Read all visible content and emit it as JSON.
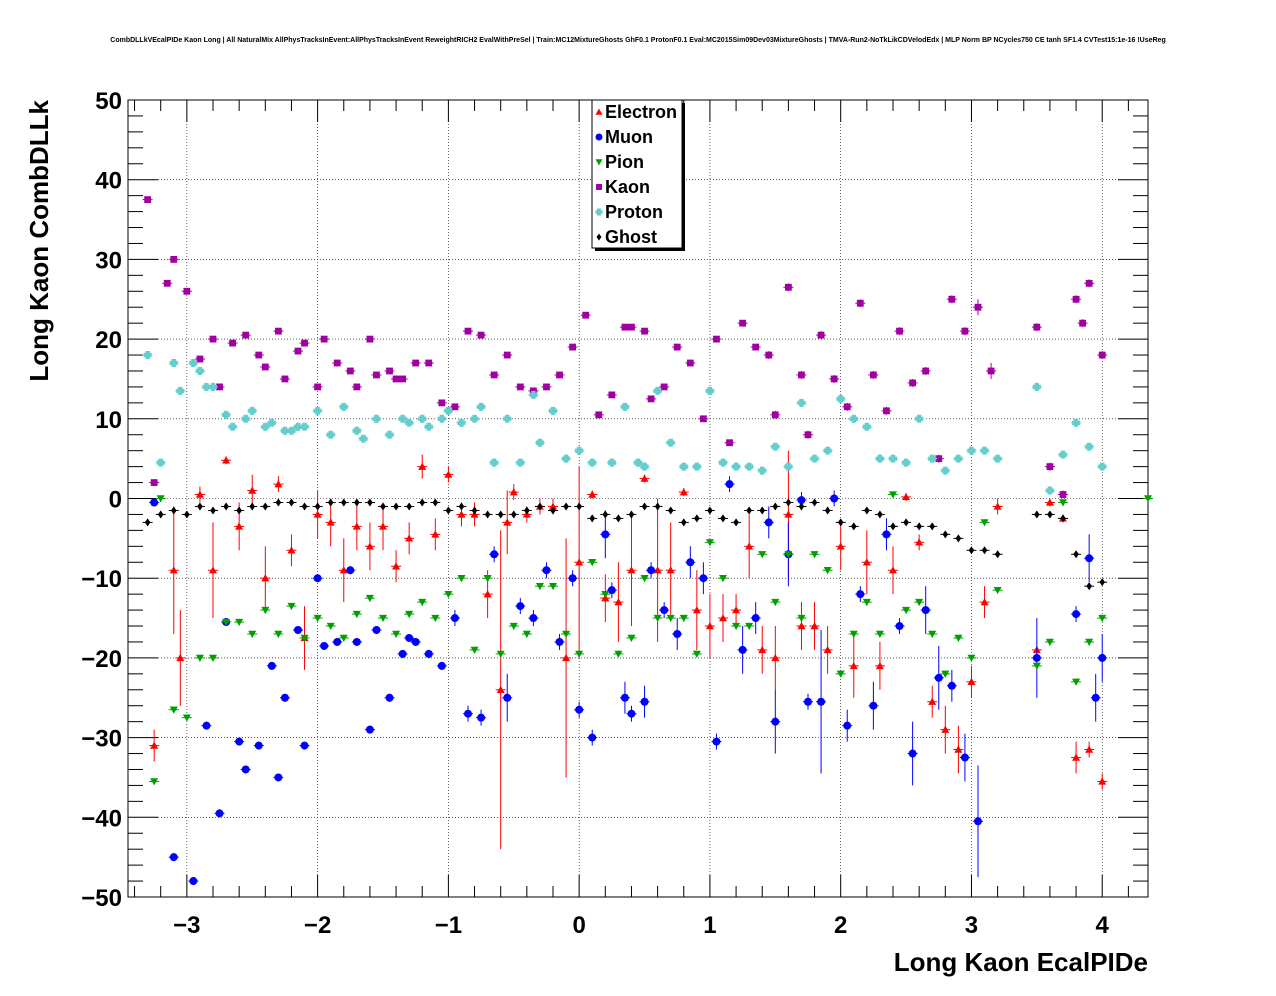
{
  "chart_data": {
    "type": "scatter",
    "title": "CombDLLkVEcalPIDe Kaon Long | All NaturalMix AllPhysTracksInEvent:AllPhysTracksInEvent ReweightRICH2 EvalWithPreSel | Train:MC12MixtureGhosts GhF0.1 ProtonF0.1 Eval:MC2015Sim09Dev03MixtureGhosts | TMVA-Run2-NoTkLikCDVelodEdx | MLP Norm BP NCycles750 CE tanh SF1.4 CVTest15:1e-16 !UseReg",
    "xlabel": "Long Kaon EcalPIDe",
    "ylabel": "Long Kaon CombDLLk",
    "xlim": [
      -3.45,
      4.35
    ],
    "ylim": [
      -50,
      50
    ],
    "xticks": [
      -3,
      -2,
      -1,
      0,
      1,
      2,
      3,
      4
    ],
    "xtick_labels": [
      "−3",
      "−2",
      "−1",
      "0",
      "1",
      "2",
      "3",
      "4"
    ],
    "yticks": [
      -50,
      -40,
      -30,
      -20,
      -10,
      0,
      10,
      20,
      30,
      40,
      50
    ],
    "ytick_labels": [
      "−50",
      "−40",
      "−30",
      "−20",
      "−10",
      "0",
      "10",
      "20",
      "30",
      "40",
      "50"
    ],
    "grid": true,
    "legend_position": "top-center",
    "series": [
      {
        "name": "Electron",
        "color": "#ff0000",
        "marker": "triangle-up",
        "x": [
          -3.25,
          -3.1,
          -3.05,
          -2.9,
          -2.8,
          -2.7,
          -2.6,
          -2.5,
          -2.4,
          -2.3,
          -2.2,
          -2.1,
          -2.0,
          -1.9,
          -1.8,
          -1.7,
          -1.6,
          -1.5,
          -1.4,
          -1.3,
          -1.2,
          -1.1,
          -1.0,
          -0.9,
          -0.8,
          -0.7,
          -0.6,
          -0.55,
          -0.5,
          -0.4,
          -0.3,
          -0.2,
          -0.1,
          0.0,
          0.1,
          0.2,
          0.3,
          0.4,
          0.5,
          0.6,
          0.7,
          0.8,
          0.9,
          1.0,
          1.1,
          1.2,
          1.3,
          1.4,
          1.5,
          1.6,
          1.7,
          1.8,
          1.9,
          2.0,
          2.1,
          2.2,
          2.3,
          2.4,
          2.5,
          2.6,
          2.7,
          2.8,
          2.9,
          3.0,
          3.1,
          3.2,
          3.5,
          3.6,
          3.7,
          3.8,
          3.9,
          4.0
        ],
        "y": [
          -31,
          -9,
          -20,
          0.5,
          -9,
          4.8,
          -3.5,
          1,
          -10,
          1.8,
          -6.5,
          -17.5,
          -2,
          -3,
          -9,
          -3.5,
          -6,
          -3.5,
          -8.5,
          -5,
          4,
          -4.5,
          3,
          -2,
          -2,
          -12,
          -24,
          -3,
          0.8,
          -2,
          -1,
          -1,
          -20,
          -8,
          0.5,
          -12.5,
          -13,
          -9,
          2.5,
          -9,
          -9,
          0.8,
          -14,
          -16,
          -15,
          -14,
          -6,
          -19,
          -20,
          -2,
          -16,
          -16,
          -19,
          -6,
          -21,
          -8,
          -21,
          -9,
          0.2,
          -5.5,
          -25.5,
          -29,
          -31.5,
          -23,
          -13,
          -1,
          -19,
          -0.5,
          -2.5,
          -32.5,
          -31.5,
          -35.5
        ],
        "err": [
          2,
          8,
          6,
          1,
          6,
          0.5,
          3,
          2,
          4,
          1,
          2,
          4,
          3,
          3,
          4,
          3,
          3,
          3,
          2,
          2,
          1.5,
          2,
          1,
          1.5,
          1.5,
          3,
          20,
          4,
          1,
          1,
          1,
          1,
          15,
          12,
          0.5,
          3,
          5,
          7,
          0.5,
          9,
          6,
          0.5,
          5,
          4,
          3,
          2,
          4,
          3,
          4,
          8,
          3,
          3,
          3,
          3,
          4,
          4,
          3,
          3,
          0.5,
          1,
          2,
          3,
          3,
          2,
          2,
          1,
          0.5,
          0.5,
          0.5,
          2,
          1,
          1
        ]
      },
      {
        "name": "Muon",
        "color": "#0000ff",
        "marker": "circle",
        "x": [
          -3.25,
          -3.1,
          -2.95,
          -2.85,
          -2.75,
          -2.7,
          -2.6,
          -2.55,
          -2.45,
          -2.35,
          -2.3,
          -2.25,
          -2.15,
          -2.1,
          -2.0,
          -1.95,
          -1.85,
          -1.75,
          -1.7,
          -1.6,
          -1.55,
          -1.45,
          -1.35,
          -1.3,
          -1.25,
          -1.15,
          -1.05,
          -0.95,
          -0.85,
          -0.75,
          -0.65,
          -0.55,
          -0.45,
          -0.35,
          -0.25,
          -0.15,
          -0.05,
          0.0,
          0.1,
          0.2,
          0.25,
          0.35,
          0.4,
          0.5,
          0.55,
          0.65,
          0.75,
          0.85,
          0.95,
          1.05,
          1.15,
          1.25,
          1.35,
          1.45,
          1.5,
          1.6,
          1.7,
          1.75,
          1.85,
          1.95,
          2.05,
          2.15,
          2.25,
          2.35,
          2.45,
          2.55,
          2.65,
          2.75,
          2.85,
          2.95,
          3.05,
          3.5,
          3.8,
          3.9,
          3.95,
          4.0
        ],
        "y": [
          -0.5,
          -45,
          -48,
          -28.5,
          -39.5,
          -15.5,
          -30.5,
          -34,
          -31,
          -21,
          -35,
          -25,
          -16.5,
          -31,
          -10,
          -18.5,
          -18,
          -9,
          -18,
          -29,
          -16.5,
          -25,
          -19.5,
          -17.5,
          -18,
          -19.5,
          -21,
          -15,
          -27,
          -27.5,
          -7,
          -25,
          -13.5,
          -15,
          -9,
          -18,
          -10,
          -26.5,
          -30,
          -4.5,
          -11.5,
          -25,
          -27,
          -25.5,
          -9,
          -14,
          -17,
          -8,
          -10,
          -30.5,
          1.8,
          -19,
          -15,
          -3,
          -28,
          -7,
          -0.2,
          -25.5,
          -25.5,
          0,
          -28.5,
          -12,
          -26,
          -4.5,
          -16,
          -32,
          -14,
          -22.5,
          -23.5,
          -32.5,
          -40.5,
          -20,
          -14.5,
          -7.5,
          -25,
          -20
        ],
        "err": [
          0.5,
          0.5,
          0.5,
          0.5,
          0.5,
          0.5,
          0.5,
          0.5,
          0.5,
          0.5,
          0.5,
          0.5,
          0.5,
          0.5,
          0.5,
          0.5,
          0.5,
          0.5,
          0.5,
          0.5,
          0.5,
          0.5,
          0.5,
          0.5,
          0.5,
          0.5,
          0.5,
          1,
          1,
          1,
          1,
          3,
          1,
          1,
          1,
          1,
          1,
          1,
          1,
          3,
          1,
          2,
          1,
          2,
          1,
          1,
          2,
          2,
          2,
          1,
          1,
          3,
          2,
          2,
          4,
          4,
          1,
          1,
          9,
          1,
          2,
          1,
          3,
          2,
          1,
          4,
          3,
          4,
          2,
          3,
          7,
          5,
          1,
          3,
          3,
          3
        ]
      },
      {
        "name": "Pion",
        "color": "#00a000",
        "marker": "triangle-down",
        "x": [
          -3.25,
          -3.2,
          -3.1,
          -3.0,
          -2.9,
          -2.8,
          -2.7,
          -2.6,
          -2.5,
          -2.4,
          -2.3,
          -2.2,
          -2.1,
          -2.0,
          -1.9,
          -1.8,
          -1.7,
          -1.6,
          -1.5,
          -1.4,
          -1.3,
          -1.2,
          -1.1,
          -1.0,
          -0.9,
          -0.8,
          -0.7,
          -0.6,
          -0.5,
          -0.4,
          -0.3,
          -0.2,
          -0.1,
          0.0,
          0.1,
          0.2,
          0.3,
          0.4,
          0.5,
          0.6,
          0.7,
          0.8,
          0.9,
          1.0,
          1.1,
          1.2,
          1.3,
          1.4,
          1.5,
          1.6,
          1.7,
          1.8,
          1.9,
          2.0,
          2.1,
          2.2,
          2.3,
          2.4,
          2.5,
          2.6,
          2.7,
          2.8,
          2.9,
          3.0,
          3.1,
          3.2,
          3.5,
          3.6,
          3.7,
          3.8,
          3.9,
          4.0,
          4.35
        ],
        "y": [
          -35.5,
          0,
          -26.5,
          -27.5,
          -20,
          -20,
          -15.5,
          -15.5,
          -17,
          -14,
          -17,
          -13.5,
          -17.5,
          -15,
          -16,
          -17.5,
          -14.5,
          -12.5,
          -15,
          -17,
          -14.5,
          -13,
          -15,
          -12,
          -10,
          -19,
          -10,
          -19.5,
          -16,
          -17,
          -11,
          -11,
          -17,
          -19.5,
          -8,
          -12,
          -19.5,
          -17.5,
          -10,
          -15,
          -15,
          -15,
          -19.5,
          -5.5,
          -10,
          -16,
          -16,
          -7,
          -13,
          -7,
          -15,
          -7,
          -9,
          -22,
          -17,
          -13,
          -17,
          0.5,
          -14,
          -13,
          -17,
          -22,
          -17.5,
          -20,
          -3,
          -11.5,
          -21,
          -18,
          -0.5,
          -23,
          -18,
          -15,
          0
        ]
      },
      {
        "name": "Kaon",
        "color": "#a000a0",
        "marker": "square",
        "x": [
          -3.3,
          -3.25,
          -3.15,
          -3.1,
          -3.0,
          -2.9,
          -2.8,
          -2.75,
          -2.65,
          -2.55,
          -2.45,
          -2.4,
          -2.3,
          -2.25,
          -2.15,
          -2.1,
          -2.0,
          -1.95,
          -1.85,
          -1.75,
          -1.7,
          -1.6,
          -1.55,
          -1.45,
          -1.4,
          -1.35,
          -1.25,
          -1.15,
          -1.05,
          -0.95,
          -0.85,
          -0.75,
          -0.65,
          -0.55,
          -0.45,
          -0.35,
          -0.25,
          -0.15,
          -0.05,
          0.05,
          0.15,
          0.25,
          0.35,
          0.4,
          0.5,
          0.55,
          0.65,
          0.75,
          0.85,
          0.95,
          1.05,
          1.15,
          1.25,
          1.35,
          1.45,
          1.5,
          1.6,
          1.7,
          1.75,
          1.85,
          1.95,
          2.05,
          2.15,
          2.25,
          2.35,
          2.45,
          2.55,
          2.65,
          2.75,
          2.85,
          2.95,
          3.05,
          3.15,
          3.5,
          3.6,
          3.7,
          3.8,
          3.85,
          3.9,
          4.0
        ],
        "y": [
          37.5,
          2,
          27,
          30,
          26,
          17.5,
          20,
          14,
          19.5,
          20.5,
          18,
          16.5,
          21,
          15,
          18.5,
          19.5,
          14,
          20,
          17,
          16,
          14,
          20,
          15.5,
          16,
          15,
          15,
          17,
          17,
          12,
          11.5,
          21,
          20.5,
          15.5,
          18,
          14,
          13.5,
          14,
          15.5,
          19,
          23,
          10.5,
          13,
          21.5,
          21.5,
          21,
          12.5,
          14,
          19,
          17,
          10,
          20,
          7,
          22,
          19,
          18,
          10.5,
          26.5,
          15.5,
          8,
          20.5,
          15,
          11.5,
          24.5,
          15.5,
          11,
          21,
          14.5,
          16,
          5,
          25,
          21,
          24,
          16,
          21.5,
          4,
          0.5,
          25,
          22,
          27,
          18
        ],
        "err": [
          0.3,
          0.3,
          0.3,
          0.3,
          0.3,
          0.3,
          0.3,
          0.3,
          0.3,
          0.3,
          0.3,
          0.3,
          0.3,
          0.3,
          0.3,
          0.3,
          0.3,
          0.3,
          0.3,
          0.3,
          0.3,
          0.3,
          0.3,
          0.3,
          0.3,
          0.3,
          0.3,
          0.3,
          0.3,
          0.3,
          0.3,
          0.3,
          0.3,
          0.3,
          0.3,
          0.3,
          0.3,
          0.3,
          0.3,
          0.3,
          0.3,
          0.3,
          0.3,
          0.3,
          0.3,
          0.3,
          0.3,
          0.3,
          0.3,
          0.3,
          0.3,
          0.3,
          0.3,
          0.3,
          0.5,
          0.5,
          0.5,
          0.5,
          0.5,
          0.5,
          0.5,
          0.5,
          0.5,
          0.5,
          0.5,
          0.5,
          0.5,
          0.5,
          0.5,
          0.5,
          0.5,
          1,
          1,
          0.5,
          0.5,
          0.5,
          0.5,
          0.5,
          0.5,
          0.5
        ]
      },
      {
        "name": "Proton",
        "color": "#66cccc",
        "marker": "cross",
        "x": [
          -3.3,
          -3.2,
          -3.1,
          -3.05,
          -2.95,
          -2.9,
          -2.85,
          -2.8,
          -2.7,
          -2.65,
          -2.55,
          -2.5,
          -2.4,
          -2.35,
          -2.25,
          -2.2,
          -2.15,
          -2.1,
          -2.0,
          -1.9,
          -1.8,
          -1.7,
          -1.65,
          -1.55,
          -1.45,
          -1.35,
          -1.3,
          -1.2,
          -1.15,
          -1.05,
          -1.0,
          -0.9,
          -0.8,
          -0.75,
          -0.65,
          -0.55,
          -0.45,
          -0.35,
          -0.3,
          -0.2,
          -0.1,
          0.0,
          0.1,
          0.25,
          0.35,
          0.45,
          0.5,
          0.6,
          0.7,
          0.8,
          0.9,
          1.0,
          1.1,
          1.2,
          1.3,
          1.4,
          1.5,
          1.6,
          1.7,
          1.8,
          1.9,
          2.0,
          2.1,
          2.2,
          2.3,
          2.4,
          2.5,
          2.6,
          2.7,
          2.8,
          2.9,
          3.0,
          3.1,
          3.2,
          3.5,
          3.6,
          3.7,
          3.8,
          3.9,
          4.0
        ],
        "y": [
          18,
          4.5,
          17,
          13.5,
          17,
          16,
          14,
          14,
          10.5,
          9,
          10,
          11,
          9,
          9.5,
          8.5,
          8.5,
          9,
          9,
          11,
          8,
          11.5,
          8.5,
          7.5,
          10,
          8,
          10,
          9.5,
          10,
          9,
          10,
          11,
          9.5,
          10,
          11.5,
          4.5,
          10,
          4.5,
          13,
          7,
          11,
          5,
          6,
          4.5,
          4.5,
          11.5,
          4.5,
          4,
          13.5,
          7,
          4,
          4,
          13.5,
          4.5,
          4,
          4,
          3.5,
          6.5,
          4,
          12,
          5,
          6,
          12.5,
          10,
          9,
          5,
          5,
          4.5,
          10,
          5,
          3.5,
          5,
          6,
          6,
          5,
          14,
          1,
          5.5,
          9.5,
          6.5,
          4
        ]
      },
      {
        "name": "Ghost",
        "color": "#000000",
        "marker": "diamond",
        "x": [
          -3.3,
          -3.2,
          -3.1,
          -3.0,
          -2.9,
          -2.8,
          -2.7,
          -2.6,
          -2.5,
          -2.4,
          -2.3,
          -2.2,
          -2.1,
          -2.0,
          -1.9,
          -1.8,
          -1.7,
          -1.6,
          -1.5,
          -1.4,
          -1.3,
          -1.2,
          -1.1,
          -1.0,
          -0.9,
          -0.8,
          -0.7,
          -0.6,
          -0.5,
          -0.4,
          -0.3,
          -0.2,
          -0.1,
          0.0,
          0.1,
          0.2,
          0.3,
          0.4,
          0.5,
          0.6,
          0.7,
          0.8,
          0.9,
          1.0,
          1.1,
          1.2,
          1.3,
          1.4,
          1.5,
          1.6,
          1.7,
          1.8,
          1.9,
          2.0,
          2.1,
          2.2,
          2.3,
          2.4,
          2.5,
          2.6,
          2.7,
          2.8,
          2.9,
          3.0,
          3.1,
          3.2,
          3.5,
          3.6,
          3.7,
          3.8,
          3.9,
          4.0
        ],
        "y": [
          -3,
          -2,
          -1.5,
          -2,
          -1,
          -1.5,
          -1,
          -1.5,
          -1,
          -1,
          -0.5,
          -0.5,
          -1,
          -1,
          -0.5,
          -0.5,
          -0.5,
          -0.5,
          -1,
          -1,
          -1,
          -0.5,
          -0.5,
          -1.5,
          -1,
          -1.5,
          -2,
          -2,
          -2,
          -1.5,
          -1,
          -1.5,
          -1,
          -1,
          -2.5,
          -2,
          -2.5,
          -2,
          -1,
          -1,
          -1.5,
          -3,
          -2.5,
          -1.5,
          -2.5,
          -3,
          -1.5,
          -1.5,
          -1,
          -0.5,
          -1,
          -0.5,
          -1.5,
          -3,
          -3.5,
          -1.5,
          -2,
          -3.5,
          -3,
          -3.5,
          -3.5,
          -4.5,
          -5,
          -6.5,
          -6.5,
          -7,
          -2,
          -2,
          -2.5,
          -7,
          -11,
          -10.5
        ]
      }
    ]
  }
}
